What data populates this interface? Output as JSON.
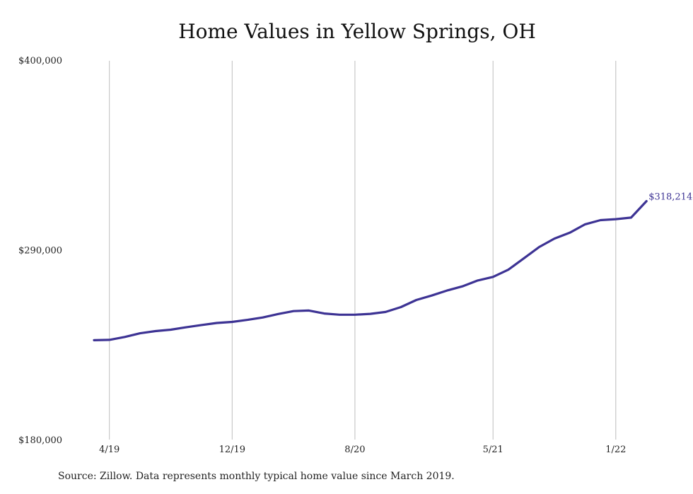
{
  "chart_data": {
    "type": "line",
    "title": "Home Values in Yellow Springs, OH",
    "xlabel": "",
    "ylabel": "",
    "ylim": [
      180000,
      400000
    ],
    "yticks": [
      "$400,000",
      "$290,000",
      "$180,000"
    ],
    "ytick_values": [
      400000,
      290000,
      180000
    ],
    "x_tick_labels": [
      "4/19",
      "12/19",
      "8/20",
      "5/21",
      "1/22"
    ],
    "x": [
      "3/19",
      "4/19",
      "5/19",
      "6/19",
      "7/19",
      "8/19",
      "9/19",
      "10/19",
      "11/19",
      "12/19",
      "1/20",
      "2/20",
      "3/20",
      "4/20",
      "5/20",
      "6/20",
      "7/20",
      "8/20",
      "9/20",
      "10/20",
      "11/20",
      "12/20",
      "1/21",
      "2/21",
      "3/21",
      "4/21",
      "5/21",
      "6/21",
      "7/21",
      "8/21",
      "9/21",
      "10/21",
      "11/21",
      "12/21",
      "1/22",
      "2/22",
      "3/22"
    ],
    "series": [
      {
        "color": "#3d3394",
        "values": [
          237600,
          237800,
          239500,
          241600,
          242900,
          243700,
          245100,
          246400,
          247600,
          248200,
          249400,
          250800,
          252800,
          254500,
          254800,
          253100,
          252400,
          252400,
          252900,
          254000,
          256800,
          260900,
          263500,
          266400,
          268800,
          272200,
          274300,
          278500,
          285000,
          291600,
          296500,
          299900,
          304800,
          307200,
          307800,
          308700,
          318214
        ]
      }
    ],
    "end_label": "$318,214",
    "grid": "vertical",
    "line_color": "#3d3394",
    "end_label_color": "#3d3394"
  },
  "source_note": "Source: Zillow. Data represents monthly typical home value since March 2019."
}
